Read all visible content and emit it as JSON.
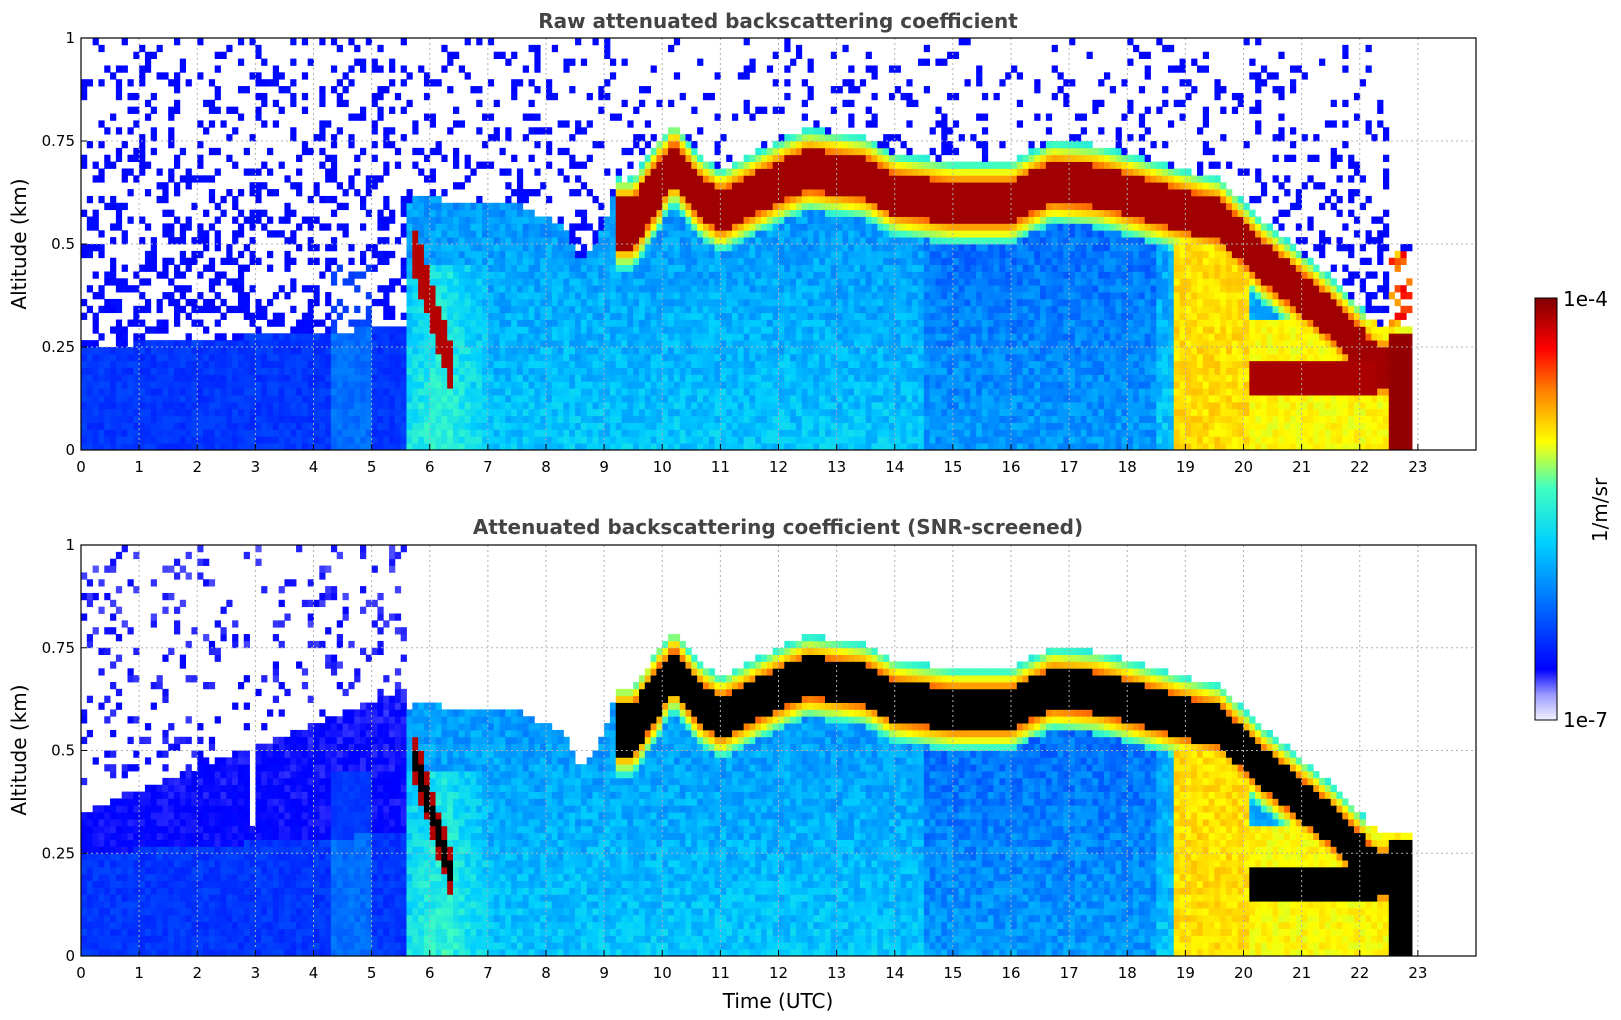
{
  "chart_data": [
    {
      "type": "heatmap",
      "title": "Raw attenuated backscattering coefficient",
      "xlabel": "",
      "ylabel": "Altitude (km)",
      "xlim": [
        0,
        24
      ],
      "ylim": [
        0,
        1
      ],
      "xticks": [
        "0",
        "1",
        "2",
        "3",
        "4",
        "5",
        "6",
        "7",
        "8",
        "9",
        "10",
        "11",
        "12",
        "13",
        "14",
        "15",
        "16",
        "17",
        "18",
        "19",
        "20",
        "21",
        "22",
        "23"
      ],
      "yticks": [
        "0",
        "0.25",
        "0.5",
        "0.75",
        "1"
      ],
      "grid": true,
      "color_scale": "jet",
      "value_range": [
        "1e-7",
        "1e-4"
      ],
      "time_extent": [
        0,
        22.95
      ],
      "features": [
        {
          "name": "cloud-layer",
          "x": [
            9.2,
            9.5,
            10.2,
            11.0,
            12.5,
            13.5,
            14.5,
            16.0,
            16.7,
            18.0,
            19.5,
            20.3,
            21.5,
            22.3
          ],
          "y": [
            0.55,
            0.55,
            0.65,
            0.62,
            0.68,
            0.66,
            0.62,
            0.6,
            0.65,
            0.6,
            0.55,
            0.45,
            0.3,
            0.2
          ]
        },
        {
          "name": "low-cloud",
          "x": [
            20.1,
            21.0,
            22.2
          ],
          "y": [
            0.18,
            0.18,
            0.15
          ]
        },
        {
          "name": "boundary-layer-top",
          "x": [
            5.7,
            6.5,
            7.5,
            8.5,
            9.0
          ],
          "y": [
            0.58,
            0.58,
            0.58,
            0.43,
            0.55
          ]
        }
      ]
    },
    {
      "type": "heatmap",
      "title": "Attenuated backscattering coefficient (SNR-screened)",
      "xlabel": "Time (UTC)",
      "ylabel": "Altitude (km)",
      "xlim": [
        0,
        24
      ],
      "ylim": [
        0,
        1
      ],
      "xticks": [
        "0",
        "1",
        "2",
        "3",
        "4",
        "5",
        "6",
        "7",
        "8",
        "9",
        "10",
        "11",
        "12",
        "13",
        "14",
        "15",
        "16",
        "17",
        "18",
        "19",
        "20",
        "21",
        "22",
        "23"
      ],
      "yticks": [
        "0",
        "0.25",
        "0.5",
        "0.75",
        "1"
      ],
      "grid": true,
      "color_scale": "jet",
      "value_range": [
        "1e-7",
        "1e-4"
      ],
      "time_extent": [
        0,
        22.95
      ],
      "saturated_color": "#000000"
    }
  ],
  "colorbar": {
    "label": "1/m/sr",
    "max_label": "1e-4",
    "min_label": "1e-7",
    "colors": [
      "#f0f0ff",
      "#0000ff",
      "#00c8ff",
      "#ffff00",
      "#ff6600",
      "#8b0000"
    ]
  }
}
